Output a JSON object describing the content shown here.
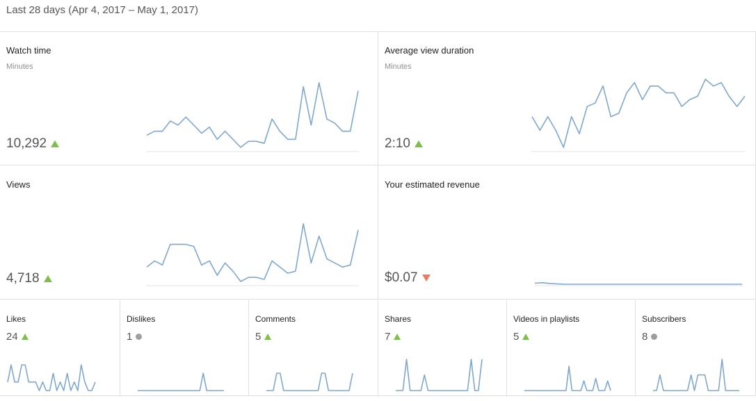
{
  "header": {
    "date_range": "Last 28 days (Apr 4, 2017 – May 1, 2017)"
  },
  "colors": {
    "up": "#7cc04b",
    "down": "#ef7a63",
    "neutral": "#9e9e9e",
    "line": "#7ea7cf"
  },
  "big_cards": [
    {
      "title": "Watch time",
      "unit": "Minutes",
      "value": "10,292",
      "trend": "up",
      "series": [
        5,
        7,
        7,
        12,
        10,
        14,
        10,
        6,
        9,
        3,
        7,
        3,
        -1,
        2,
        2,
        1,
        13,
        7,
        3,
        3,
        29,
        10,
        31,
        13,
        11,
        7,
        7,
        27
      ]
    },
    {
      "title": "Average view duration",
      "unit": "Minutes",
      "value": "2:10",
      "trend": "up",
      "series": [
        12,
        8,
        12,
        8,
        3,
        12,
        7,
        15,
        16,
        21,
        12,
        13,
        19,
        22,
        17,
        21,
        21,
        19,
        19,
        15,
        17,
        18,
        23,
        21,
        22,
        18,
        15,
        18
      ]
    },
    {
      "title": "Views",
      "unit": "",
      "value": "4,718",
      "trend": "up",
      "series": [
        6,
        9,
        7,
        17,
        17,
        17,
        16,
        7,
        9,
        2,
        8,
        4,
        -1,
        1,
        1,
        0,
        9,
        6,
        3,
        4,
        27,
        8,
        21,
        10,
        8,
        6,
        7,
        24
      ]
    },
    {
      "title": "Your estimated revenue",
      "unit": "",
      "value": "$0.07",
      "trend": "down",
      "series": [
        0.6,
        0.8,
        0.5,
        0.3,
        0.2,
        0.2,
        0.2,
        0.2,
        0.2,
        0.2,
        0.2,
        0.2,
        0.2,
        0.2,
        0.2,
        0.2,
        0.2,
        0.2,
        0.2,
        0.2,
        0.2,
        0.2,
        0.2,
        0.2,
        0.2,
        0.2,
        0.2,
        0.2
      ]
    }
  ],
  "small_cards": [
    {
      "title": "Likes",
      "value": "24",
      "trend": "up",
      "series": [
        1,
        3,
        1,
        1,
        3,
        3,
        1,
        1,
        1,
        0,
        1,
        0,
        0,
        2,
        0,
        1,
        0,
        2,
        0,
        1,
        0,
        3,
        1,
        0,
        0,
        1
      ]
    },
    {
      "title": "Dislikes",
      "value": "1",
      "trend": "neutral",
      "series": [
        0,
        0,
        0,
        0,
        0,
        0,
        0,
        0,
        0,
        0,
        0,
        0,
        0,
        0,
        0,
        0,
        0,
        0,
        0,
        1,
        0,
        0,
        0,
        0,
        0,
        0
      ]
    },
    {
      "title": "Comments",
      "value": "5",
      "trend": "up",
      "series": [
        0,
        0,
        0,
        1,
        1,
        0,
        0,
        0,
        0,
        0,
        0,
        0,
        0,
        0,
        0,
        0,
        1,
        1,
        0,
        0,
        0,
        0,
        0,
        0,
        0,
        1
      ]
    },
    {
      "title": "Shares",
      "value": "7",
      "trend": "up",
      "series": [
        0,
        0,
        0,
        2,
        0,
        0,
        0,
        0,
        1,
        0,
        0,
        0,
        0,
        0,
        0,
        0,
        0,
        0,
        0,
        0,
        0,
        2,
        0,
        0,
        2
      ]
    },
    {
      "title": "Videos in playlists",
      "value": "5",
      "trend": "up",
      "series": [
        0,
        0,
        0,
        0,
        0,
        0,
        0,
        0,
        0,
        0,
        0,
        0,
        0,
        0,
        0,
        2,
        0,
        0,
        0,
        0,
        0.8,
        0,
        0,
        0,
        1,
        0,
        0,
        0,
        0.8,
        0
      ]
    },
    {
      "title": "Subscribers",
      "value": "8",
      "trend": "neutral",
      "series": [
        0,
        0,
        1,
        0,
        0,
        0,
        0,
        0,
        0,
        0,
        0,
        1,
        0,
        1,
        1,
        1,
        0,
        0,
        0,
        0,
        2,
        0,
        0,
        0,
        0,
        0
      ]
    }
  ]
}
